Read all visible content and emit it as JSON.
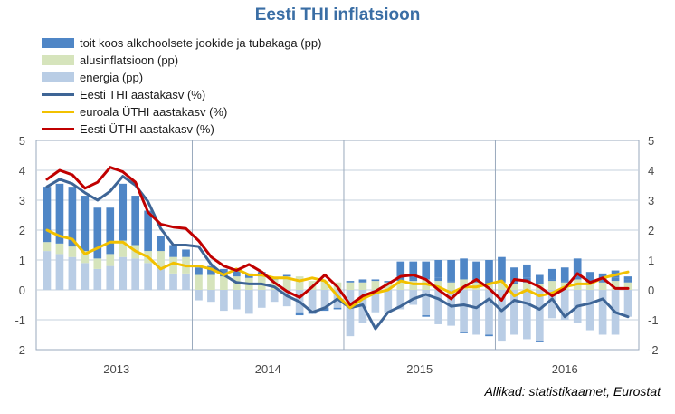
{
  "chart_data": {
    "type": "bar+line",
    "title": "Eesti THI inflatsioon",
    "source": "Allikad: statistikaamet, Eurostat",
    "ylim": [
      -2,
      5
    ],
    "yticks": [
      -2,
      -1,
      0,
      1,
      2,
      3,
      4,
      5
    ],
    "yticks_right": [
      -2,
      -1,
      0,
      1,
      2,
      3,
      4,
      5
    ],
    "year_labels": [
      "2013",
      "2014",
      "2015",
      "2016"
    ],
    "legend_position": "top-left",
    "grid": true,
    "months": [
      "2013-01",
      "2013-02",
      "2013-03",
      "2013-04",
      "2013-05",
      "2013-06",
      "2013-07",
      "2013-08",
      "2013-09",
      "2013-10",
      "2013-11",
      "2013-12",
      "2014-01",
      "2014-02",
      "2014-03",
      "2014-04",
      "2014-05",
      "2014-06",
      "2014-07",
      "2014-08",
      "2014-09",
      "2014-10",
      "2014-11",
      "2014-12",
      "2015-01",
      "2015-02",
      "2015-03",
      "2015-04",
      "2015-05",
      "2015-06",
      "2015-07",
      "2015-08",
      "2015-09",
      "2015-10",
      "2015-11",
      "2015-12",
      "2016-01",
      "2016-02",
      "2016-03",
      "2016-04",
      "2016-05",
      "2016-06",
      "2016-07",
      "2016-08",
      "2016-09",
      "2016-10",
      "2016-11"
    ],
    "stacked_series": [
      {
        "name": "toit koos alkohoolsete jookide ja tubakaga (pp)",
        "color": "#4f86c6",
        "values": [
          1.85,
          2.0,
          2.0,
          1.85,
          1.7,
          1.55,
          1.9,
          1.65,
          1.35,
          0.5,
          0.4,
          0.25,
          0.25,
          0.3,
          0.25,
          0.25,
          0.15,
          0.15,
          0.05,
          0.05,
          -0.1,
          -0.1,
          -0.1,
          -0.05,
          0.05,
          0.1,
          0.05,
          0.05,
          0.05,
          0.05,
          -0.05,
          0.1,
          0.05,
          -0.05,
          0.05,
          -0.05,
          0.05,
          0.05,
          0.15,
          -0.05,
          0.05,
          0.05,
          0.15,
          0.05,
          0.05,
          0.1,
          0.1
        ]
      },
      {
        "name": "alusinflatsioon (pp)",
        "color": "#d6e4bc",
        "values": [
          0.3,
          0.35,
          0.35,
          0.4,
          0.35,
          0.4,
          0.55,
          0.45,
          0.4,
          0.55,
          0.55,
          0.55,
          0.5,
          0.5,
          0.45,
          0.45,
          0.4,
          0.45,
          0.35,
          0.45,
          0.45,
          0.3,
          0.3,
          0.25,
          0.25,
          0.25,
          0.3,
          0.25,
          0.3,
          0.3,
          0.35,
          0.3,
          0.25,
          0.35,
          0.25,
          0.2,
          0.25,
          0.2,
          0.25,
          0.2,
          0.3,
          0.25,
          0.35,
          0.2,
          0.25,
          0.3,
          0.25
        ]
      },
      {
        "name": "energia (pp)",
        "color": "#b9cde5",
        "values": [
          1.3,
          1.2,
          1.1,
          0.9,
          0.7,
          0.8,
          1.1,
          1.05,
          0.9,
          0.75,
          0.55,
          0.55,
          -0.35,
          -0.4,
          -0.7,
          -0.65,
          -0.8,
          -0.6,
          -0.4,
          -0.55,
          -0.75,
          -0.7,
          -0.6,
          -0.6,
          -1.55,
          -1.1,
          -0.75,
          -0.75,
          -0.65,
          -0.5,
          -0.85,
          -1.15,
          -1.2,
          -1.4,
          -1.5,
          -1.5,
          -1.7,
          -1.5,
          -1.65,
          -1.7,
          -0.95,
          -1.0,
          -1.1,
          -1.35,
          -1.5,
          -1.5,
          -0.9
        ]
      }
    ],
    "top_bar_values": [
      0,
      0,
      0,
      0,
      0,
      0,
      0,
      0,
      0,
      0,
      0,
      0,
      0,
      0,
      0,
      0,
      0,
      0,
      0,
      0,
      0,
      0,
      0,
      0,
      0,
      0,
      0,
      0,
      0.6,
      0.6,
      0.6,
      0.6,
      0.7,
      0.7,
      0.65,
      0.8,
      0.8,
      0.5,
      0.45,
      0.3,
      0.35,
      0.45,
      0.55,
      0.35,
      0.25,
      0.25,
      0.1
    ],
    "line_series": [
      {
        "name": "Eesti THI aastakasv (%)",
        "color": "#3e6596",
        "values": [
          3.45,
          3.7,
          3.55,
          3.25,
          3.0,
          3.3,
          3.8,
          3.5,
          2.95,
          2.05,
          1.5,
          1.5,
          1.45,
          0.85,
          0.5,
          0.25,
          0.2,
          0.2,
          0.1,
          -0.2,
          -0.4,
          -0.75,
          -0.6,
          -0.3,
          -0.6,
          -0.5,
          -1.3,
          -0.75,
          -0.55,
          -0.3,
          -0.15,
          -0.3,
          -0.55,
          -0.5,
          -0.6,
          -0.3,
          -0.7,
          -0.35,
          -0.45,
          -0.65,
          -0.3,
          -0.9,
          -0.55,
          -0.45,
          -0.3,
          -0.75,
          -0.9
        ]
      },
      {
        "name": "euroala ÜTHI aastakasv (%)",
        "color": "#f2c100",
        "values": [
          2.0,
          1.8,
          1.7,
          1.2,
          1.4,
          1.6,
          1.6,
          1.3,
          1.1,
          0.7,
          0.9,
          0.8,
          0.8,
          0.7,
          0.5,
          0.7,
          0.5,
          0.5,
          0.4,
          0.4,
          0.3,
          0.4,
          0.3,
          -0.2,
          -0.6,
          -0.3,
          -0.1,
          0.0,
          0.3,
          0.2,
          0.2,
          0.1,
          -0.1,
          0.1,
          0.1,
          0.2,
          0.3,
          -0.2,
          0.0,
          -0.2,
          -0.1,
          0.1,
          0.2,
          0.2,
          0.4,
          0.5,
          0.6
        ]
      },
      {
        "name": "Eesti ÜTHI aastakasv (%)",
        "color": "#c00000",
        "values": [
          3.7,
          4.0,
          3.85,
          3.4,
          3.6,
          4.1,
          3.95,
          3.6,
          2.6,
          2.2,
          2.1,
          2.05,
          1.65,
          1.1,
          0.8,
          0.65,
          0.85,
          0.6,
          0.25,
          -0.05,
          -0.25,
          0.1,
          0.5,
          0.1,
          -0.5,
          -0.2,
          -0.05,
          0.2,
          0.45,
          0.5,
          0.35,
          0.0,
          -0.3,
          0.1,
          0.35,
          0.05,
          -0.35,
          0.35,
          0.3,
          0.1,
          -0.2,
          0.05,
          0.55,
          0.25,
          0.4,
          0.05,
          0.05
        ]
      }
    ]
  }
}
